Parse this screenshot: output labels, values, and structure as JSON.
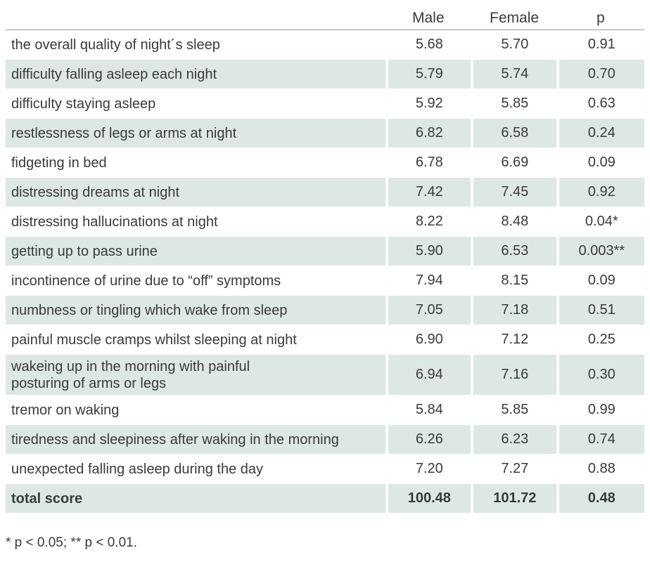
{
  "table": {
    "headers": {
      "label": "",
      "male": "Male",
      "female": "Female",
      "p": "p"
    },
    "rows": [
      {
        "label": "the overall quality of night´s sleep",
        "male": "5.68",
        "female": "5.70",
        "p": "0.91"
      },
      {
        "label": "difficulty falling asleep each night",
        "male": "5.79",
        "female": "5.74",
        "p": "0.70"
      },
      {
        "label": "difficulty staying asleep",
        "male": "5.92",
        "female": "5.85",
        "p": "0.63"
      },
      {
        "label": "restlessness of legs or arms at night",
        "male": "6.82",
        "female": "6.58",
        "p": "0.24"
      },
      {
        "label": "fidgeting in bed",
        "male": "6.78",
        "female": "6.69",
        "p": "0.09"
      },
      {
        "label": "distressing dreams at night",
        "male": "7.42",
        "female": "7.45",
        "p": "0.92"
      },
      {
        "label": "distressing hallucinations at night",
        "male": "8.22",
        "female": "8.48",
        "p": "0.04*"
      },
      {
        "label": "getting up to pass urine",
        "male": "5.90",
        "female": "6.53",
        "p": "0.003**"
      },
      {
        "label": "incontinence of urine due to “off” symptoms",
        "male": "7.94",
        "female": "8.15",
        "p": "0.09"
      },
      {
        "label": "numbness or tingling which wake from sleep",
        "male": "7.05",
        "female": "7.18",
        "p": "0.51"
      },
      {
        "label": "painful muscle cramps whilst sleeping at night",
        "male": "6.90",
        "female": "7.12",
        "p": "0.25"
      },
      {
        "label": "wakeing up in the morning with painful",
        "label2": "posturing of arms or legs",
        "male": "6.94",
        "female": "7.16",
        "p": "0.30"
      },
      {
        "label": "tremor on waking",
        "male": "5.84",
        "female": "5.85",
        "p": "0.99"
      },
      {
        "label": "tiredness and sleepiness after waking in the morning",
        "male": "6.26",
        "female": "6.23",
        "p": "0.74"
      },
      {
        "label": "unexpected falling asleep during the day",
        "male": "7.20",
        "female": "7.27",
        "p": "0.88"
      }
    ],
    "total": {
      "label": "total score",
      "male": "100.48",
      "female": "101.72",
      "p": "0.48"
    }
  },
  "footnote": "* p < 0.05; ** p < 0.01."
}
